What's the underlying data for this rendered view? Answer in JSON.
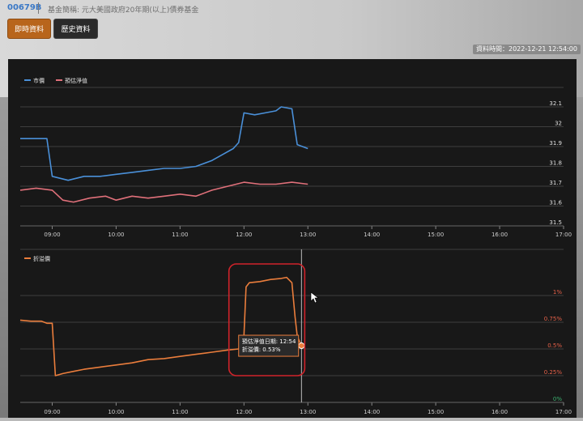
{
  "header": {
    "fund_code": "00679B",
    "fund_name": "基金簡稱: 元大美國政府20年期(以上)債券基金"
  },
  "buttons": {
    "live": "即時資料",
    "history": "歷史資料"
  },
  "data_time": {
    "label": "資料時間：",
    "value": "2022-12-21 12:54:00"
  },
  "colors": {
    "market_price": "#4a90d9",
    "estimated_nav": "#e0707a",
    "premium": "#ea7d3c",
    "highlight": "#d0232a"
  },
  "tooltip": {
    "line1": "預估淨值日期: 12:54",
    "line2": "折溢價: 0.53%"
  },
  "chart_data": [
    {
      "type": "line",
      "legend_position": "top-left",
      "grid": true,
      "x_ticks": [
        "09:00",
        "10:00",
        "11:00",
        "12:00",
        "13:00",
        "14:00",
        "15:00",
        "16:00",
        "17:00"
      ],
      "y_ticks": [
        "31.5",
        "31.6",
        "31.7",
        "31.8",
        "31.9",
        "32",
        "32.1"
      ],
      "ylim": [
        31.5,
        32.1
      ],
      "series": [
        {
          "name": "市價",
          "points": [
            [
              "08:30",
              31.94
            ],
            [
              "08:55",
              31.94
            ],
            [
              "09:00",
              31.75
            ],
            [
              "09:15",
              31.73
            ],
            [
              "09:30",
              31.75
            ],
            [
              "09:45",
              31.75
            ],
            [
              "10:00",
              31.76
            ],
            [
              "10:15",
              31.77
            ],
            [
              "10:30",
              31.78
            ],
            [
              "10:45",
              31.79
            ],
            [
              "11:00",
              31.79
            ],
            [
              "11:15",
              31.8
            ],
            [
              "11:30",
              31.83
            ],
            [
              "11:40",
              31.86
            ],
            [
              "11:50",
              31.89
            ],
            [
              "11:55",
              31.92
            ],
            [
              "12:00",
              32.07
            ],
            [
              "12:10",
              32.06
            ],
            [
              "12:20",
              32.07
            ],
            [
              "12:30",
              32.08
            ],
            [
              "12:35",
              32.1
            ],
            [
              "12:45",
              32.09
            ],
            [
              "12:50",
              31.91
            ],
            [
              "13:00",
              31.89
            ]
          ]
        },
        {
          "name": "預估淨值",
          "points": [
            [
              "08:30",
              31.68
            ],
            [
              "08:45",
              31.69
            ],
            [
              "09:00",
              31.68
            ],
            [
              "09:10",
              31.63
            ],
            [
              "09:20",
              31.62
            ],
            [
              "09:35",
              31.64
            ],
            [
              "09:50",
              31.65
            ],
            [
              "10:00",
              31.63
            ],
            [
              "10:15",
              31.65
            ],
            [
              "10:30",
              31.64
            ],
            [
              "10:45",
              31.65
            ],
            [
              "11:00",
              31.66
            ],
            [
              "11:15",
              31.65
            ],
            [
              "11:30",
              31.68
            ],
            [
              "11:45",
              31.7
            ],
            [
              "12:00",
              31.72
            ],
            [
              "12:15",
              31.71
            ],
            [
              "12:30",
              31.71
            ],
            [
              "12:45",
              31.72
            ],
            [
              "13:00",
              31.71
            ]
          ]
        }
      ]
    },
    {
      "type": "line",
      "legend_position": "top-left",
      "grid": true,
      "x_ticks": [
        "09:00",
        "10:00",
        "11:00",
        "12:00",
        "13:00",
        "14:00",
        "15:00",
        "16:00",
        "17:00"
      ],
      "y_ticks": [
        "0%",
        "0.25%",
        "0.5%",
        "0.75%",
        "1%"
      ],
      "ylim": [
        0,
        1.25
      ],
      "series": [
        {
          "name": "折溢價",
          "points": [
            [
              "08:30",
              0.77
            ],
            [
              "08:40",
              0.76
            ],
            [
              "08:50",
              0.76
            ],
            [
              "08:55",
              0.74
            ],
            [
              "09:00",
              0.74
            ],
            [
              "09:03",
              0.25
            ],
            [
              "09:10",
              0.27
            ],
            [
              "09:20",
              0.29
            ],
            [
              "09:30",
              0.31
            ],
            [
              "09:45",
              0.33
            ],
            [
              "10:00",
              0.35
            ],
            [
              "10:15",
              0.37
            ],
            [
              "10:30",
              0.4
            ],
            [
              "10:45",
              0.41
            ],
            [
              "11:00",
              0.43
            ],
            [
              "11:15",
              0.45
            ],
            [
              "11:30",
              0.47
            ],
            [
              "11:45",
              0.49
            ],
            [
              "11:55",
              0.5
            ],
            [
              "12:00",
              0.63
            ],
            [
              "12:02",
              1.08
            ],
            [
              "12:05",
              1.12
            ],
            [
              "12:15",
              1.13
            ],
            [
              "12:25",
              1.15
            ],
            [
              "12:35",
              1.16
            ],
            [
              "12:40",
              1.17
            ],
            [
              "12:45",
              1.12
            ],
            [
              "12:48",
              0.8
            ],
            [
              "12:50",
              0.62
            ],
            [
              "12:54",
              0.53
            ]
          ]
        }
      ]
    }
  ]
}
